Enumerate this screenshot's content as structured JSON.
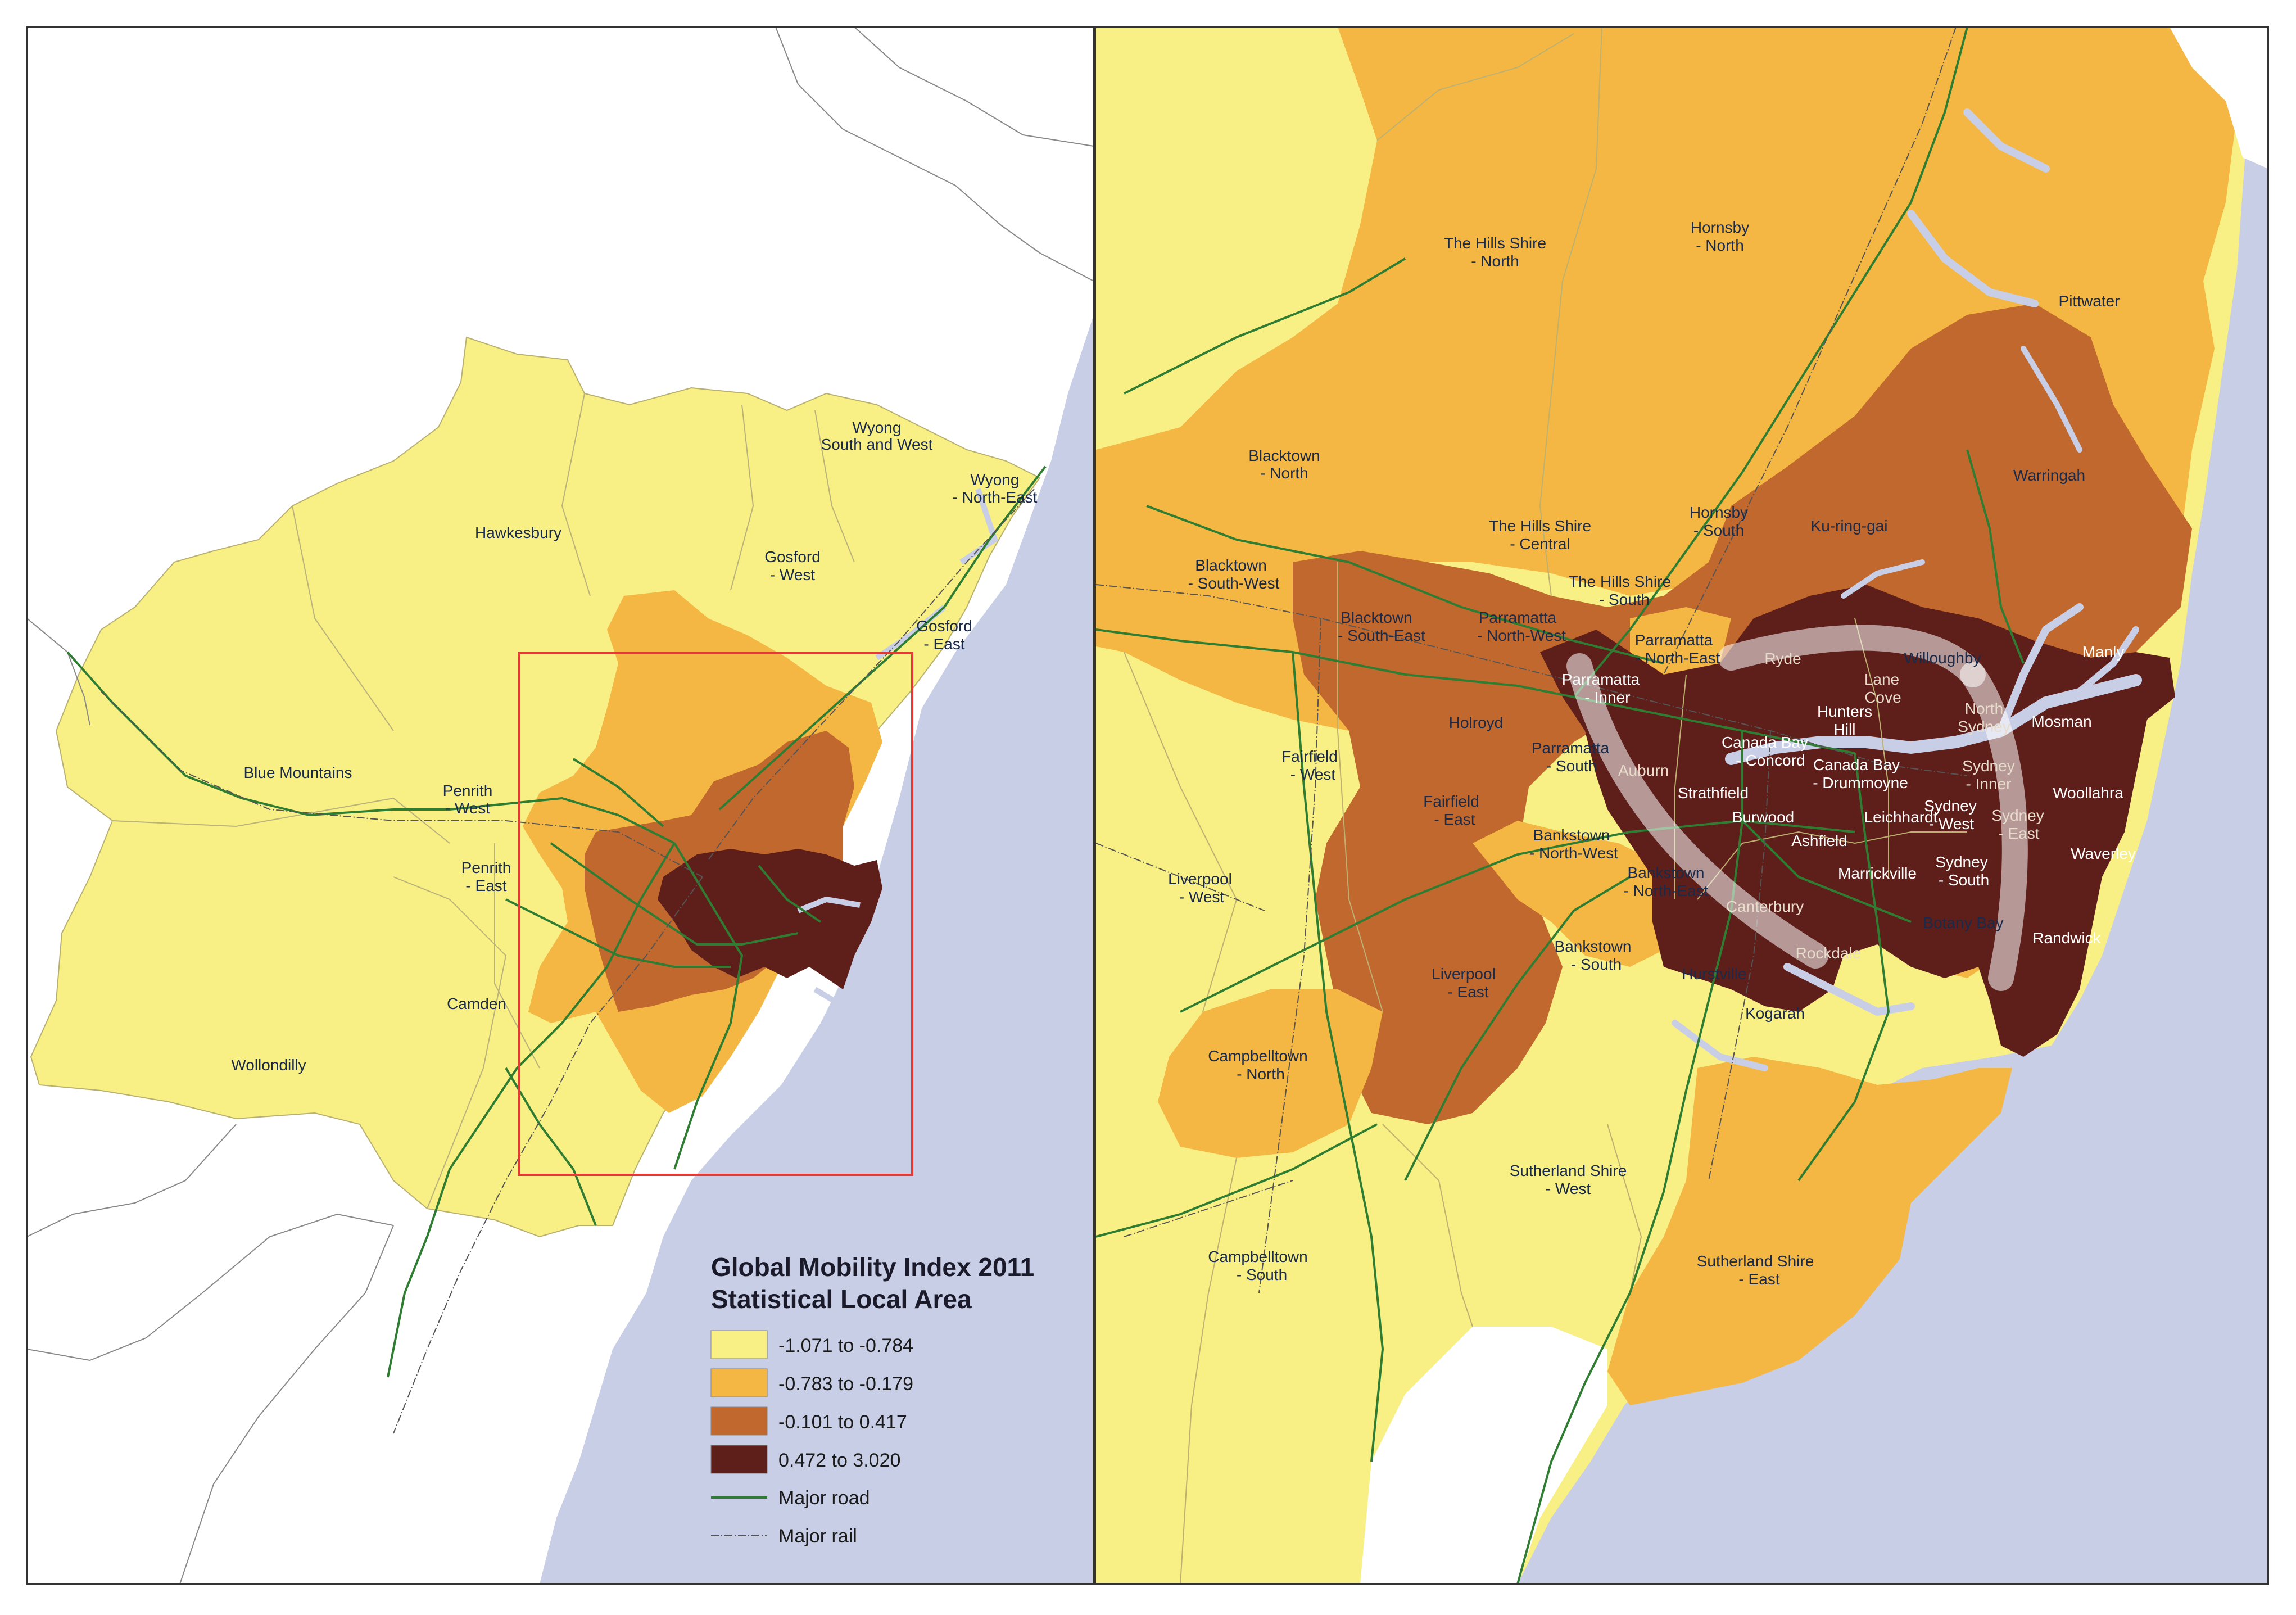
{
  "legend": {
    "title_line1": "Global Mobility Index 2011",
    "title_line2": "Statistical Local Area",
    "classes": [
      {
        "label": "-1.071 to -0.784",
        "color": "#f8ef85"
      },
      {
        "label": "-0.783 to -0.179",
        "color": "#f4b744"
      },
      {
        "label": "-0.101 to 0.417",
        "color": "#c0682d"
      },
      {
        "label": "0.472 to 3.020",
        "color": "#5e1e1a"
      }
    ],
    "road_label": "Major road",
    "rail_label": "Major rail",
    "road_color": "#2e7d32",
    "rail_color": "#555555"
  },
  "colors": {
    "sea": "#c8cee6",
    "land": "#ffffff",
    "inset_frame": "#e53935",
    "class1": "#f8ef85",
    "class2": "#f4b744",
    "class3": "#c0682d",
    "class4": "#5e1e1a"
  },
  "left_labels": {
    "wyong_sw_1": "Wyong",
    "wyong_sw_2": "South and West",
    "wyong_ne_1": "Wyong",
    "wyong_ne_2": "- North-East",
    "hawkesbury": "Hawkesbury",
    "gosford_w_1": "Gosford",
    "gosford_w_2": "- West",
    "gosford_e_1": "Gosford",
    "gosford_e_2": "- East",
    "blue_mountains": "Blue Mountains",
    "penrith_w_1": "Penrith",
    "penrith_w_2": "- West",
    "penrith_e_1": "Penrith",
    "penrith_e_2": "- East",
    "camden": "Camden",
    "wollondilly": "Wollondilly"
  },
  "right_labels": {
    "hills_n_1": "The Hills Shire",
    "hills_n_2": "- North",
    "hornsby_n_1": "Hornsby",
    "hornsby_n_2": "- North",
    "pittwater": "Pittwater",
    "blacktown_n_1": "Blacktown",
    "blacktown_n_2": "- North",
    "hills_c_1": "The Hills Shire",
    "hills_c_2": "- Central",
    "hornsby_s_1": "Hornsby",
    "hornsby_s_2": "- South",
    "kuringgai": "Ku-ring-gai",
    "warringah": "Warringah",
    "blacktown_sw_1": "Blacktown",
    "blacktown_sw_2": "- South-West",
    "hills_s_1": "The Hills Shire",
    "hills_s_2": "- South",
    "blacktown_se_1": "Blacktown",
    "blacktown_se_2": "- South-East",
    "parramatta_nw_1": "Parramatta",
    "parramatta_nw_2": "- North-West",
    "parramatta_ne_1": "Parramatta",
    "parramatta_ne_2": "- North-East",
    "ryde": "Ryde",
    "willoughby": "Willoughby",
    "manly": "Manly",
    "parramatta_i_1": "Parramatta",
    "parramatta_i_2": "- Inner",
    "lane_cove_1": "Lane",
    "lane_cove_2": "Cove",
    "hunters_hill_1": "Hunters",
    "hunters_hill_2": "Hill",
    "north_sydney_1": "North",
    "north_sydney_2": "Sydney",
    "mosman": "Mosman",
    "holroyd": "Holroyd",
    "fairfield_w_1": "Fairfield",
    "fairfield_w_2": "- West",
    "parramatta_s_1": "Parramatta",
    "parramatta_s_2": "- South",
    "auburn": "Auburn",
    "canada_bay_c_1": "Canada Bay",
    "canada_bay_c_2": "- Concord",
    "canada_bay_d_1": "Canada Bay",
    "canada_bay_d_2": "- Drummoyne",
    "sydney_inner_1": "Sydney",
    "sydney_inner_2": "- Inner",
    "woollahra": "Woollahra",
    "fairfield_e_1": "Fairfield",
    "fairfield_e_2": "- East",
    "strathfield": "Strathfield",
    "burwood": "Burwood",
    "leichhardt": "Leichhardt",
    "sydney_west_1": "Sydney",
    "sydney_west_2": "- West",
    "sydney_east_1": "Sydney",
    "sydney_east_2": "- East",
    "bankstown_nw_1": "Bankstown",
    "bankstown_nw_2": "- North-West",
    "ashfield": "Ashfield",
    "waverley": "Waverley",
    "liverpool_w_1": "Liverpool",
    "liverpool_w_2": "- West",
    "bankstown_ne_1": "Bankstown",
    "bankstown_ne_2": "- North-East",
    "marrickville": "Marrickville",
    "sydney_south_1": "Sydney",
    "sydney_south_2": "- South",
    "canterbury": "Canterbury",
    "botany_bay": "Botany Bay",
    "randwick": "Randwick",
    "bankstown_s_1": "Bankstown",
    "bankstown_s_2": "- South",
    "rockdale": "Rockdale",
    "hurstville": "Hurstville",
    "liverpool_e_1": "Liverpool",
    "liverpool_e_2": "- East",
    "kogarah": "Kogarah",
    "campbelltown_n_1": "Campbelltown",
    "campbelltown_n_2": "- North",
    "sutherland_w_1": "Sutherland Shire",
    "sutherland_w_2": "- West",
    "campbelltown_s_1": "Campbelltown",
    "campbelltown_s_2": "- South",
    "sutherland_e_1": "Sutherland Shire",
    "sutherland_e_2": "- East"
  }
}
